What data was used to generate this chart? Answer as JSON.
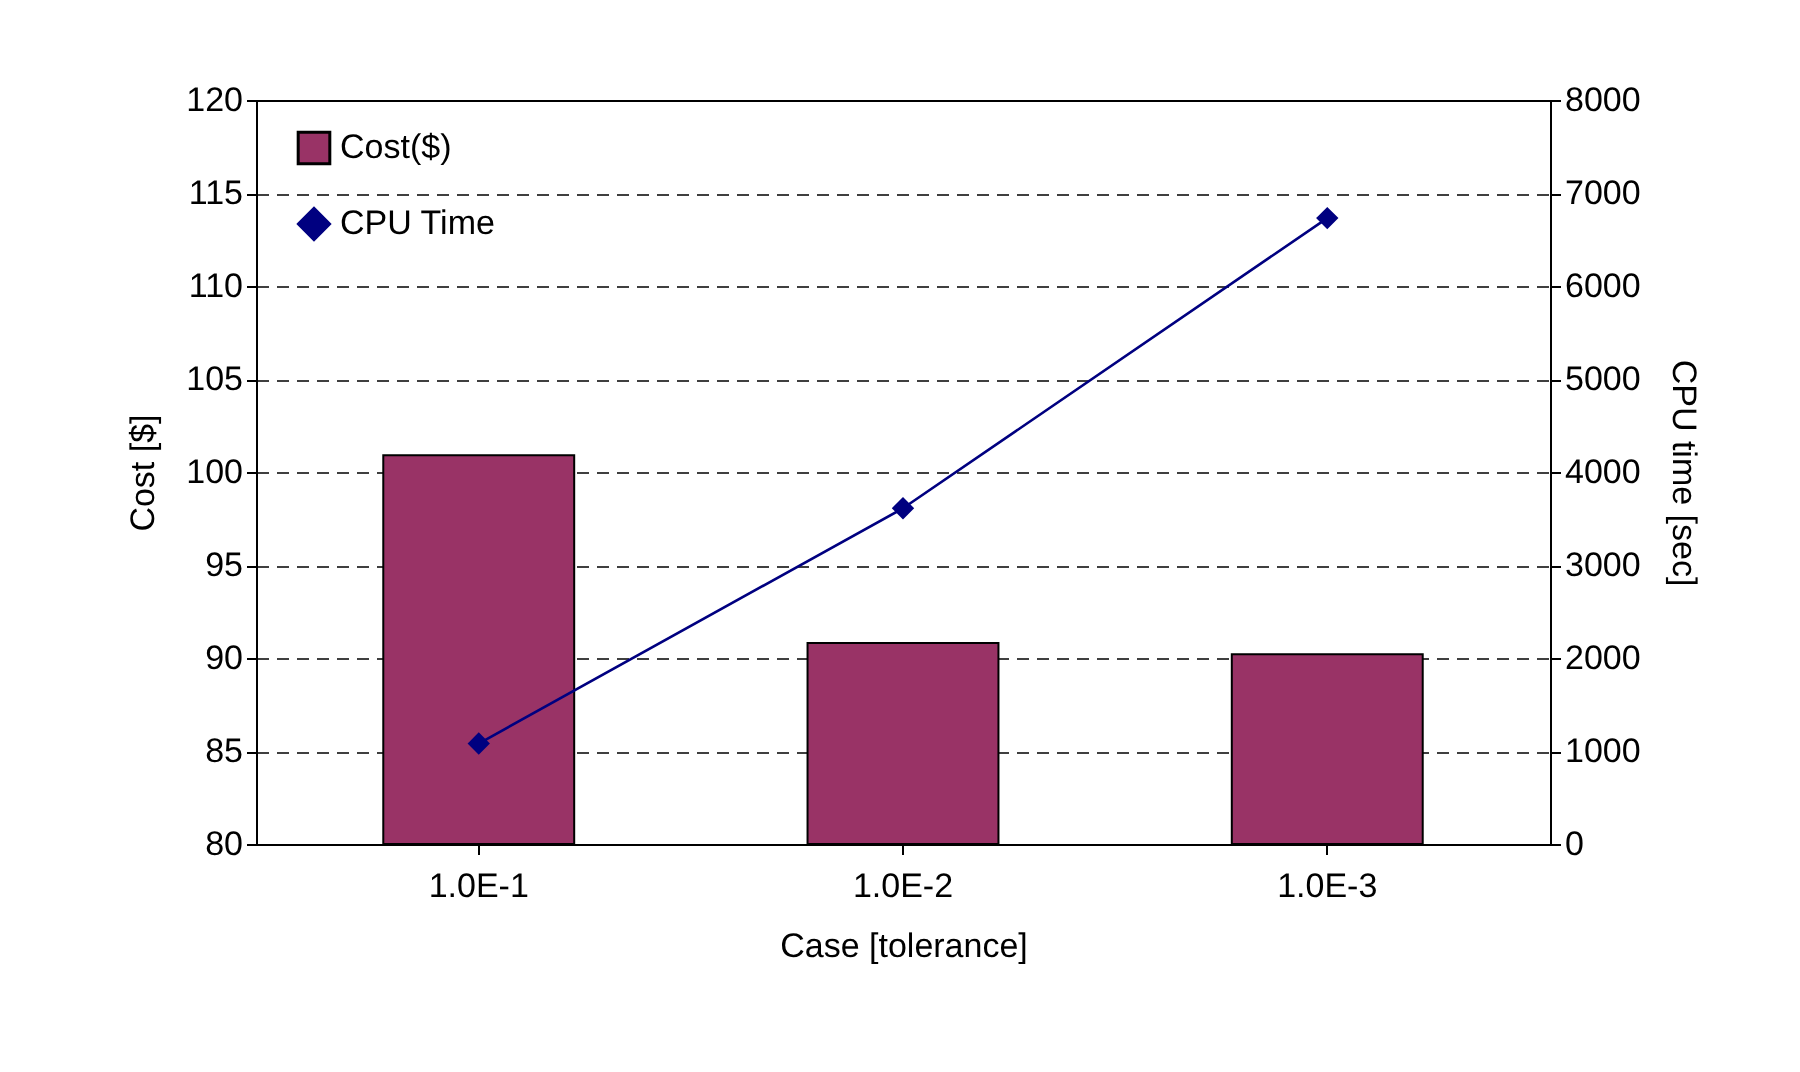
{
  "chart_data": {
    "type": "bar",
    "xlabel": "Case  [tolerance]",
    "ylabel": "Cost [$]",
    "y2label": "CPU time [sec]",
    "categories": [
      "1.0E-1",
      "1.0E-2",
      "1.0E-3"
    ],
    "series": [
      {
        "name": "Cost($)",
        "color": "#993366",
        "values": [
          100.9,
          90.8,
          90.2
        ]
      },
      {
        "name": "CPU Time",
        "type": "line",
        "axis": "y2",
        "color": "#000080",
        "values": [
          1080,
          3610,
          6730
        ]
      }
    ],
    "ylim": [
      80,
      120
    ],
    "yticks": [
      80,
      85,
      90,
      95,
      100,
      105,
      110,
      115,
      120
    ],
    "y2lim": [
      0,
      8000
    ],
    "y2ticks": [
      0,
      1000,
      2000,
      3000,
      4000,
      5000,
      6000,
      7000,
      8000
    ],
    "grid": "y",
    "legend": "top left",
    "marker": "diamond",
    "line_style": "solid"
  }
}
